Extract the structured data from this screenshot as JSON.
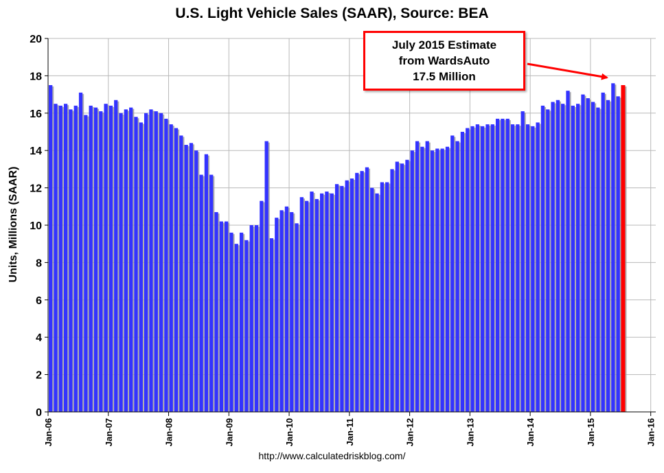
{
  "chart_data": {
    "type": "bar",
    "title": "U.S. Light Vehicle Sales (SAAR), Source: BEA",
    "ylabel": "Units, Millions (SAAR)",
    "xlabel": "",
    "ylim": [
      0,
      20
    ],
    "yticks": [
      0,
      2,
      4,
      6,
      8,
      10,
      12,
      14,
      16,
      18,
      20
    ],
    "xticks": [
      "Jan-06",
      "Jan-07",
      "Jan-08",
      "Jan-09",
      "Jan-10",
      "Jan-11",
      "Jan-12",
      "Jan-13",
      "Jan-14",
      "Jan-15",
      "Jan-16"
    ],
    "grid": true,
    "start_month": "Jan-06",
    "months_total": 121,
    "series": [
      {
        "name": "U.S. Light Vehicle Sales (SAAR)",
        "color": "#3333ff",
        "values": [
          17.5,
          16.5,
          16.4,
          16.5,
          16.2,
          16.4,
          17.1,
          15.9,
          16.4,
          16.3,
          16.1,
          16.5,
          16.4,
          16.7,
          16.0,
          16.2,
          16.3,
          15.8,
          15.5,
          16.0,
          16.2,
          16.1,
          16.0,
          15.7,
          15.4,
          15.2,
          14.8,
          14.3,
          14.4,
          14.0,
          12.7,
          13.8,
          12.7,
          10.7,
          10.2,
          10.2,
          9.6,
          9.0,
          9.6,
          9.2,
          10.0,
          10.0,
          11.3,
          14.5,
          9.3,
          10.4,
          10.8,
          11.0,
          10.7,
          10.1,
          11.5,
          11.3,
          11.8,
          11.4,
          11.7,
          11.8,
          11.7,
          12.2,
          12.1,
          12.4,
          12.5,
          12.8,
          12.9,
          13.1,
          12.0,
          11.7,
          12.3,
          12.3,
          13.0,
          13.4,
          13.3,
          13.5,
          14.0,
          14.5,
          14.2,
          14.5,
          14.0,
          14.1,
          14.1,
          14.2,
          14.8,
          14.5,
          15.0,
          15.2,
          15.3,
          15.4,
          15.3,
          15.4,
          15.4,
          15.7,
          15.7,
          15.7,
          15.4,
          15.4,
          16.1,
          15.4,
          15.3,
          15.5,
          16.4,
          16.2,
          16.6,
          16.7,
          16.5,
          17.2,
          16.4,
          16.5,
          17.0,
          16.8,
          16.6,
          16.3,
          17.1,
          16.7,
          17.6,
          16.9
        ]
      },
      {
        "name": "July 2015 Estimate (WardsAuto)",
        "color": "#ff0000",
        "month_index": 114,
        "value": 17.5
      }
    ],
    "annotation": {
      "lines": [
        "July 2015 Estimate",
        "from WardsAuto",
        "17.5 Million"
      ]
    }
  },
  "source": "http://www.calculatedriskblog.com/"
}
